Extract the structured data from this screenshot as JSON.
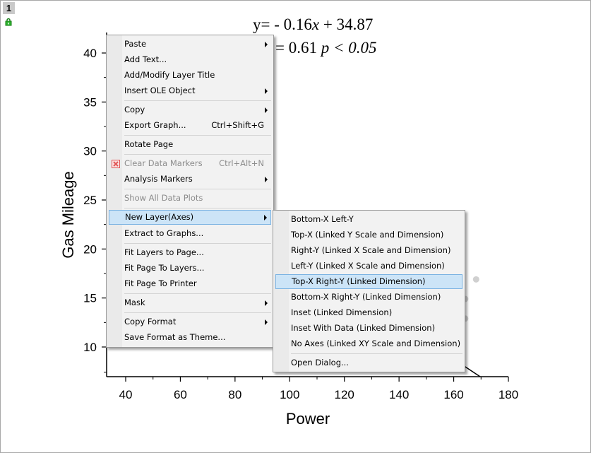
{
  "window": {
    "layer_number": "1"
  },
  "regression": {
    "line1": "y= - 0.16x + 34.87",
    "line2_tail": "= 0.61",
    "line2_p": "p < 0.05"
  },
  "chart_data": {
    "type": "scatter",
    "xlabel": "Power",
    "ylabel": "Gas Mileage",
    "xlim": [
      33,
      180
    ],
    "ylim": [
      7.5,
      43
    ],
    "x_ticks": [
      "40",
      "60",
      "80",
      "100",
      "120",
      "140",
      "160",
      "180"
    ],
    "y_ticks": [
      "10",
      "15",
      "20",
      "25",
      "30",
      "35",
      "40"
    ],
    "visible_points": [
      {
        "x": 170,
        "y": 16.9
      },
      {
        "x": 166,
        "y": 14.9
      },
      {
        "x": 166,
        "y": 12.9
      }
    ],
    "fit_line": {
      "slope": -0.16,
      "intercept": 34.87
    }
  },
  "context_menu": {
    "items": [
      {
        "label": "Paste",
        "submenu": true
      },
      {
        "label": "Add Text..."
      },
      {
        "label": "Add/Modify Layer Title"
      },
      {
        "label": "Insert OLE Object",
        "submenu": true
      },
      {
        "label": "Copy",
        "submenu": true
      },
      {
        "label": "Export Graph...",
        "shortcut": "Ctrl+Shift+G"
      },
      {
        "label": "Rotate Page"
      },
      {
        "label": "Clear Data Markers",
        "shortcut": "Ctrl+Alt+N",
        "disabled": true,
        "icon": "clear-markers-icon"
      },
      {
        "label": "Analysis Markers",
        "submenu": true
      },
      {
        "label": "Show All Data Plots",
        "disabled": true
      },
      {
        "label": "New Layer(Axes)",
        "submenu": true,
        "highlighted": true
      },
      {
        "label": "Extract to Graphs..."
      },
      {
        "label": "Fit Layers to Page..."
      },
      {
        "label": "Fit Page To Layers..."
      },
      {
        "label": "Fit Page To Printer"
      },
      {
        "label": "Mask",
        "submenu": true
      },
      {
        "label": "Copy Format",
        "submenu": true
      },
      {
        "label": "Save Format as Theme..."
      }
    ]
  },
  "submenu": {
    "items": [
      {
        "label": "Bottom-X Left-Y"
      },
      {
        "label": "Top-X (Linked Y Scale and Dimension)"
      },
      {
        "label": "Right-Y (Linked X Scale and Dimension)"
      },
      {
        "label": "Left-Y (Linked X Scale and Dimension)"
      },
      {
        "label": "Top-X Right-Y (Linked Dimension)",
        "highlighted": true
      },
      {
        "label": "Bottom-X Right-Y (Linked Dimension)"
      },
      {
        "label": "Inset (Linked Dimension)"
      },
      {
        "label": "Inset With Data (Linked Dimension)"
      },
      {
        "label": "No Axes (Linked XY Scale and Dimension)"
      },
      {
        "label": "Open Dialog..."
      }
    ]
  },
  "colors": {
    "highlight": "#cce4f7",
    "highlight_border": "#7bb3e2",
    "points": "#d0d0d0",
    "clear_icon": "#e05555",
    "lock_icon": "#2db52d"
  }
}
